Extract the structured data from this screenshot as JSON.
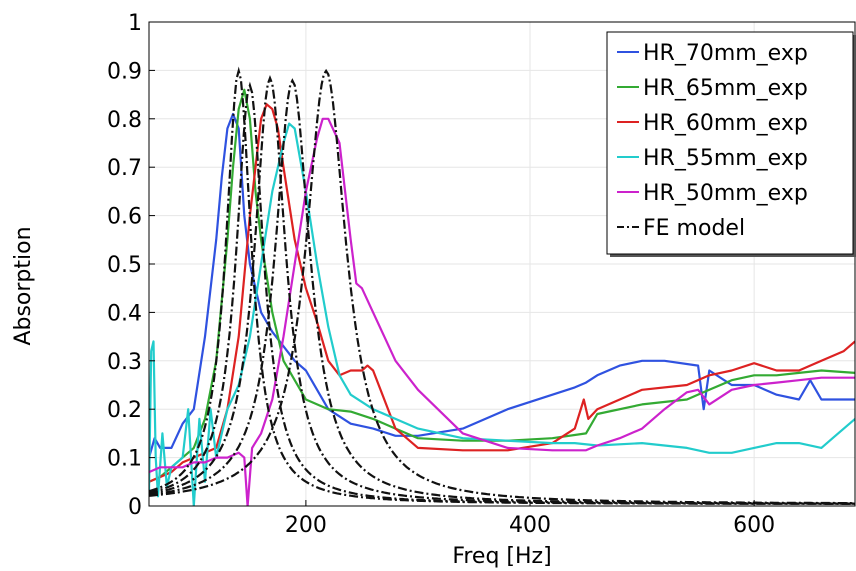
{
  "chart_data": {
    "type": "line",
    "title": "",
    "xlabel": "Freq [Hz]",
    "ylabel": "Absorption",
    "xlim": [
      60,
      690
    ],
    "ylim": [
      0,
      1
    ],
    "x_ticks": [
      200,
      400,
      600
    ],
    "x_tick_labels": [
      "200",
      "400",
      "600"
    ],
    "y_ticks": [
      0,
      0.1,
      0.2,
      0.3,
      0.4,
      0.5,
      0.6,
      0.7,
      0.8,
      0.9,
      1
    ],
    "y_tick_labels": [
      "0",
      "0.1",
      "0.2",
      "0.3",
      "0.4",
      "0.5",
      "0.6",
      "0.7",
      "0.8",
      "0.9",
      "1"
    ],
    "grid": true,
    "legend_position": "top-right",
    "series": [
      {
        "name": "HR_70mm_exp",
        "color": "#2f52e0",
        "style": "solid",
        "x": [
          60,
          65,
          70,
          80,
          90,
          100,
          110,
          120,
          125,
          130,
          135,
          140,
          145,
          150,
          160,
          170,
          180,
          190,
          200,
          220,
          240,
          260,
          280,
          300,
          340,
          380,
          420,
          440,
          450,
          460,
          480,
          500,
          520,
          550,
          555,
          560,
          580,
          600,
          620,
          640,
          650,
          660,
          690
        ],
        "y": [
          0.1,
          0.14,
          0.12,
          0.12,
          0.17,
          0.2,
          0.35,
          0.55,
          0.68,
          0.78,
          0.81,
          0.78,
          0.6,
          0.5,
          0.4,
          0.36,
          0.33,
          0.3,
          0.28,
          0.2,
          0.17,
          0.16,
          0.145,
          0.145,
          0.16,
          0.2,
          0.23,
          0.245,
          0.255,
          0.27,
          0.29,
          0.3,
          0.3,
          0.29,
          0.2,
          0.28,
          0.25,
          0.25,
          0.23,
          0.22,
          0.26,
          0.22,
          0.22
        ]
      },
      {
        "name": "HR_65mm_exp",
        "color": "#33aa33",
        "style": "solid",
        "x": [
          60,
          70,
          80,
          90,
          100,
          110,
          120,
          130,
          135,
          140,
          145,
          150,
          155,
          160,
          170,
          180,
          200,
          220,
          240,
          260,
          280,
          300,
          340,
          380,
          420,
          450,
          460,
          500,
          540,
          560,
          580,
          600,
          620,
          640,
          660,
          690
        ],
        "y": [
          0.05,
          0.06,
          0.08,
          0.1,
          0.12,
          0.18,
          0.3,
          0.55,
          0.7,
          0.82,
          0.86,
          0.8,
          0.65,
          0.55,
          0.4,
          0.3,
          0.22,
          0.2,
          0.195,
          0.18,
          0.16,
          0.14,
          0.135,
          0.135,
          0.14,
          0.15,
          0.19,
          0.21,
          0.22,
          0.24,
          0.26,
          0.27,
          0.27,
          0.275,
          0.28,
          0.275
        ]
      },
      {
        "name": "HR_60mm_exp",
        "color": "#dd2222",
        "style": "solid",
        "x": [
          60,
          70,
          80,
          90,
          100,
          110,
          120,
          130,
          140,
          150,
          155,
          160,
          165,
          170,
          175,
          180,
          190,
          200,
          210,
          220,
          230,
          240,
          250,
          255,
          260,
          280,
          300,
          340,
          380,
          420,
          440,
          448,
          452,
          460,
          500,
          540,
          560,
          580,
          600,
          620,
          640,
          660,
          680,
          690
        ],
        "y": [
          0.05,
          0.06,
          0.07,
          0.09,
          0.1,
          0.11,
          0.12,
          0.2,
          0.35,
          0.6,
          0.7,
          0.8,
          0.83,
          0.82,
          0.78,
          0.7,
          0.55,
          0.45,
          0.38,
          0.3,
          0.27,
          0.28,
          0.28,
          0.29,
          0.28,
          0.16,
          0.12,
          0.115,
          0.115,
          0.13,
          0.16,
          0.22,
          0.18,
          0.2,
          0.24,
          0.25,
          0.27,
          0.28,
          0.295,
          0.28,
          0.28,
          0.3,
          0.32,
          0.34
        ]
      },
      {
        "name": "HR_55mm_exp",
        "color": "#22cccc",
        "style": "solid",
        "x": [
          60,
          62,
          64,
          66,
          68,
          72,
          76,
          80,
          90,
          95,
          100,
          105,
          110,
          115,
          120,
          125,
          130,
          140,
          150,
          160,
          170,
          180,
          185,
          190,
          200,
          210,
          220,
          230,
          240,
          260,
          280,
          300,
          340,
          380,
          420,
          440,
          460,
          500,
          540,
          560,
          580,
          600,
          620,
          640,
          660,
          670,
          680,
          690
        ],
        "y": [
          0.03,
          0.32,
          0.34,
          0.1,
          0.02,
          0.15,
          0.04,
          0.08,
          0.1,
          0.2,
          0.0,
          0.18,
          0.05,
          0.2,
          0.1,
          0.15,
          0.2,
          0.25,
          0.35,
          0.5,
          0.65,
          0.75,
          0.79,
          0.78,
          0.65,
          0.5,
          0.37,
          0.27,
          0.23,
          0.2,
          0.18,
          0.16,
          0.14,
          0.135,
          0.13,
          0.13,
          0.125,
          0.13,
          0.12,
          0.11,
          0.11,
          0.12,
          0.13,
          0.13,
          0.12,
          0.14,
          0.16,
          0.18
        ]
      },
      {
        "name": "HR_50mm_exp",
        "color": "#cc22cc",
        "style": "solid",
        "x": [
          60,
          70,
          80,
          90,
          100,
          110,
          120,
          130,
          140,
          145,
          148,
          152,
          160,
          170,
          180,
          190,
          200,
          210,
          215,
          220,
          230,
          240,
          245,
          250,
          260,
          270,
          280,
          300,
          340,
          380,
          420,
          450,
          460,
          480,
          500,
          520,
          540,
          550,
          560,
          580,
          600,
          620,
          640,
          660,
          690
        ],
        "y": [
          0.07,
          0.08,
          0.08,
          0.08,
          0.09,
          0.09,
          0.1,
          0.1,
          0.11,
          0.1,
          0.0,
          0.12,
          0.15,
          0.22,
          0.35,
          0.5,
          0.65,
          0.76,
          0.8,
          0.8,
          0.75,
          0.55,
          0.46,
          0.45,
          0.4,
          0.35,
          0.3,
          0.24,
          0.15,
          0.12,
          0.115,
          0.115,
          0.125,
          0.14,
          0.16,
          0.2,
          0.235,
          0.24,
          0.21,
          0.24,
          0.25,
          0.255,
          0.26,
          0.265,
          0.265
        ]
      },
      {
        "name": "FE model",
        "color": "#111111",
        "style": "dashdot",
        "resonances": [
          {
            "f0": 140,
            "peak": 0.895,
            "hw": 14
          },
          {
            "f0": 150,
            "peak": 0.865,
            "hw": 15
          },
          {
            "f0": 168,
            "peak": 0.88,
            "hw": 17
          },
          {
            "f0": 188,
            "peak": 0.875,
            "hw": 19
          },
          {
            "f0": 218,
            "peak": 0.895,
            "hw": 22
          }
        ]
      }
    ]
  }
}
